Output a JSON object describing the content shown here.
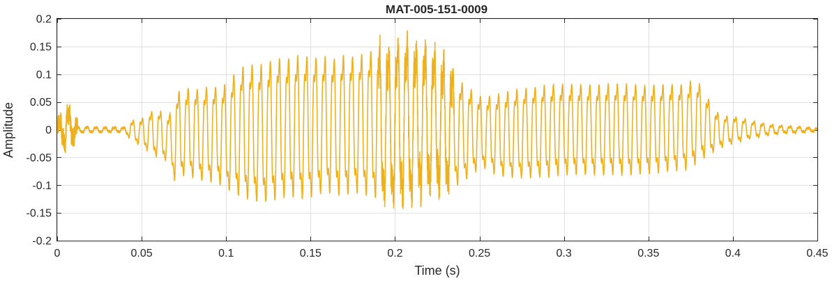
{
  "chart_data": {
    "type": "line",
    "title": "MAT-005-151-0009",
    "xlabel": "Time (s)",
    "ylabel": "Amplitude",
    "xlim": [
      0,
      0.45
    ],
    "ylim": [
      -0.2,
      0.2
    ],
    "xticks": [
      0,
      0.05,
      0.1,
      0.15,
      0.2,
      0.25,
      0.3,
      0.35,
      0.4,
      0.45
    ],
    "xtick_labels": [
      "0",
      "0.05",
      "0.1",
      "0.15",
      "0.2",
      "0.25",
      "0.3",
      "0.35",
      "0.4",
      "0.45"
    ],
    "yticks": [
      -0.2,
      -0.15,
      -0.1,
      -0.05,
      0,
      0.05,
      0.1,
      0.15,
      0.2
    ],
    "ytick_labels": [
      "-0.2",
      "-0.15",
      "-0.1",
      "-0.05",
      "0",
      "0.05",
      "0.1",
      "0.15",
      "0.2"
    ],
    "grid": true,
    "line_color": "#EDB120",
    "series": [
      {
        "envelope": {
          "t": [
            0,
            0.004,
            0.005,
            0.007,
            0.009,
            0.012,
            0.02,
            0.03,
            0.04,
            0.043,
            0.05,
            0.055,
            0.06,
            0.065,
            0.068,
            0.07,
            0.075,
            0.08,
            0.085,
            0.09,
            0.095,
            0.1,
            0.105,
            0.11,
            0.115,
            0.12,
            0.125,
            0.13,
            0.135,
            0.14,
            0.145,
            0.15,
            0.155,
            0.16,
            0.165,
            0.17,
            0.175,
            0.18,
            0.185,
            0.19,
            0.195,
            0.2,
            0.205,
            0.21,
            0.215,
            0.22,
            0.225,
            0.23,
            0.235,
            0.24,
            0.245,
            0.25,
            0.255,
            0.26,
            0.27,
            0.28,
            0.29,
            0.3,
            0.31,
            0.32,
            0.33,
            0.34,
            0.35,
            0.36,
            0.37,
            0.375,
            0.38,
            0.385,
            0.39,
            0.395,
            0.4,
            0.405,
            0.41,
            0.42,
            0.43,
            0.44,
            0.45
          ],
          "upper": [
            0.012,
            0.03,
            0.055,
            0.04,
            0.025,
            0.006,
            0.006,
            0.005,
            0.005,
            0.018,
            0.025,
            0.04,
            0.045,
            0.035,
            0.045,
            0.085,
            0.09,
            0.095,
            0.09,
            0.1,
            0.095,
            0.105,
            0.125,
            0.14,
            0.145,
            0.145,
            0.15,
            0.16,
            0.155,
            0.16,
            0.165,
            0.16,
            0.158,
            0.16,
            0.155,
            0.165,
            0.16,
            0.165,
            0.17,
            0.175,
            0.175,
            0.18,
            0.185,
            0.18,
            0.175,
            0.17,
            0.16,
            0.14,
            0.12,
            0.105,
            0.09,
            0.075,
            0.075,
            0.08,
            0.09,
            0.095,
            0.1,
            0.102,
            0.1,
            0.1,
            0.102,
            0.1,
            0.098,
            0.1,
            0.1,
            0.105,
            0.1,
            0.07,
            0.04,
            0.03,
            0.03,
            0.025,
            0.02,
            0.012,
            0.008,
            0.006,
            0.003
          ],
          "lower": [
            -0.012,
            -0.03,
            -0.045,
            -0.035,
            -0.02,
            -0.006,
            -0.006,
            -0.005,
            -0.005,
            -0.02,
            -0.035,
            -0.05,
            -0.06,
            -0.065,
            -0.09,
            -0.115,
            -0.1,
            -0.105,
            -0.11,
            -0.115,
            -0.115,
            -0.13,
            -0.14,
            -0.15,
            -0.155,
            -0.16,
            -0.16,
            -0.155,
            -0.15,
            -0.15,
            -0.155,
            -0.15,
            -0.145,
            -0.14,
            -0.145,
            -0.15,
            -0.14,
            -0.145,
            -0.15,
            -0.155,
            -0.155,
            -0.16,
            -0.155,
            -0.15,
            -0.145,
            -0.14,
            -0.13,
            -0.13,
            -0.125,
            -0.115,
            -0.1,
            -0.085,
            -0.085,
            -0.1,
            -0.105,
            -0.105,
            -0.105,
            -0.1,
            -0.1,
            -0.1,
            -0.1,
            -0.1,
            -0.098,
            -0.095,
            -0.09,
            -0.09,
            -0.07,
            -0.06,
            -0.045,
            -0.035,
            -0.03,
            -0.025,
            -0.02,
            -0.012,
            -0.008,
            -0.006,
            -0.003
          ]
        },
        "pitch_hz": 185,
        "noise_bursts": [
          {
            "t0": 0,
            "t1": 0.012,
            "amp": 0.018
          },
          {
            "t0": 0.19,
            "t1": 0.235,
            "amp": 0.03
          }
        ]
      }
    ]
  }
}
